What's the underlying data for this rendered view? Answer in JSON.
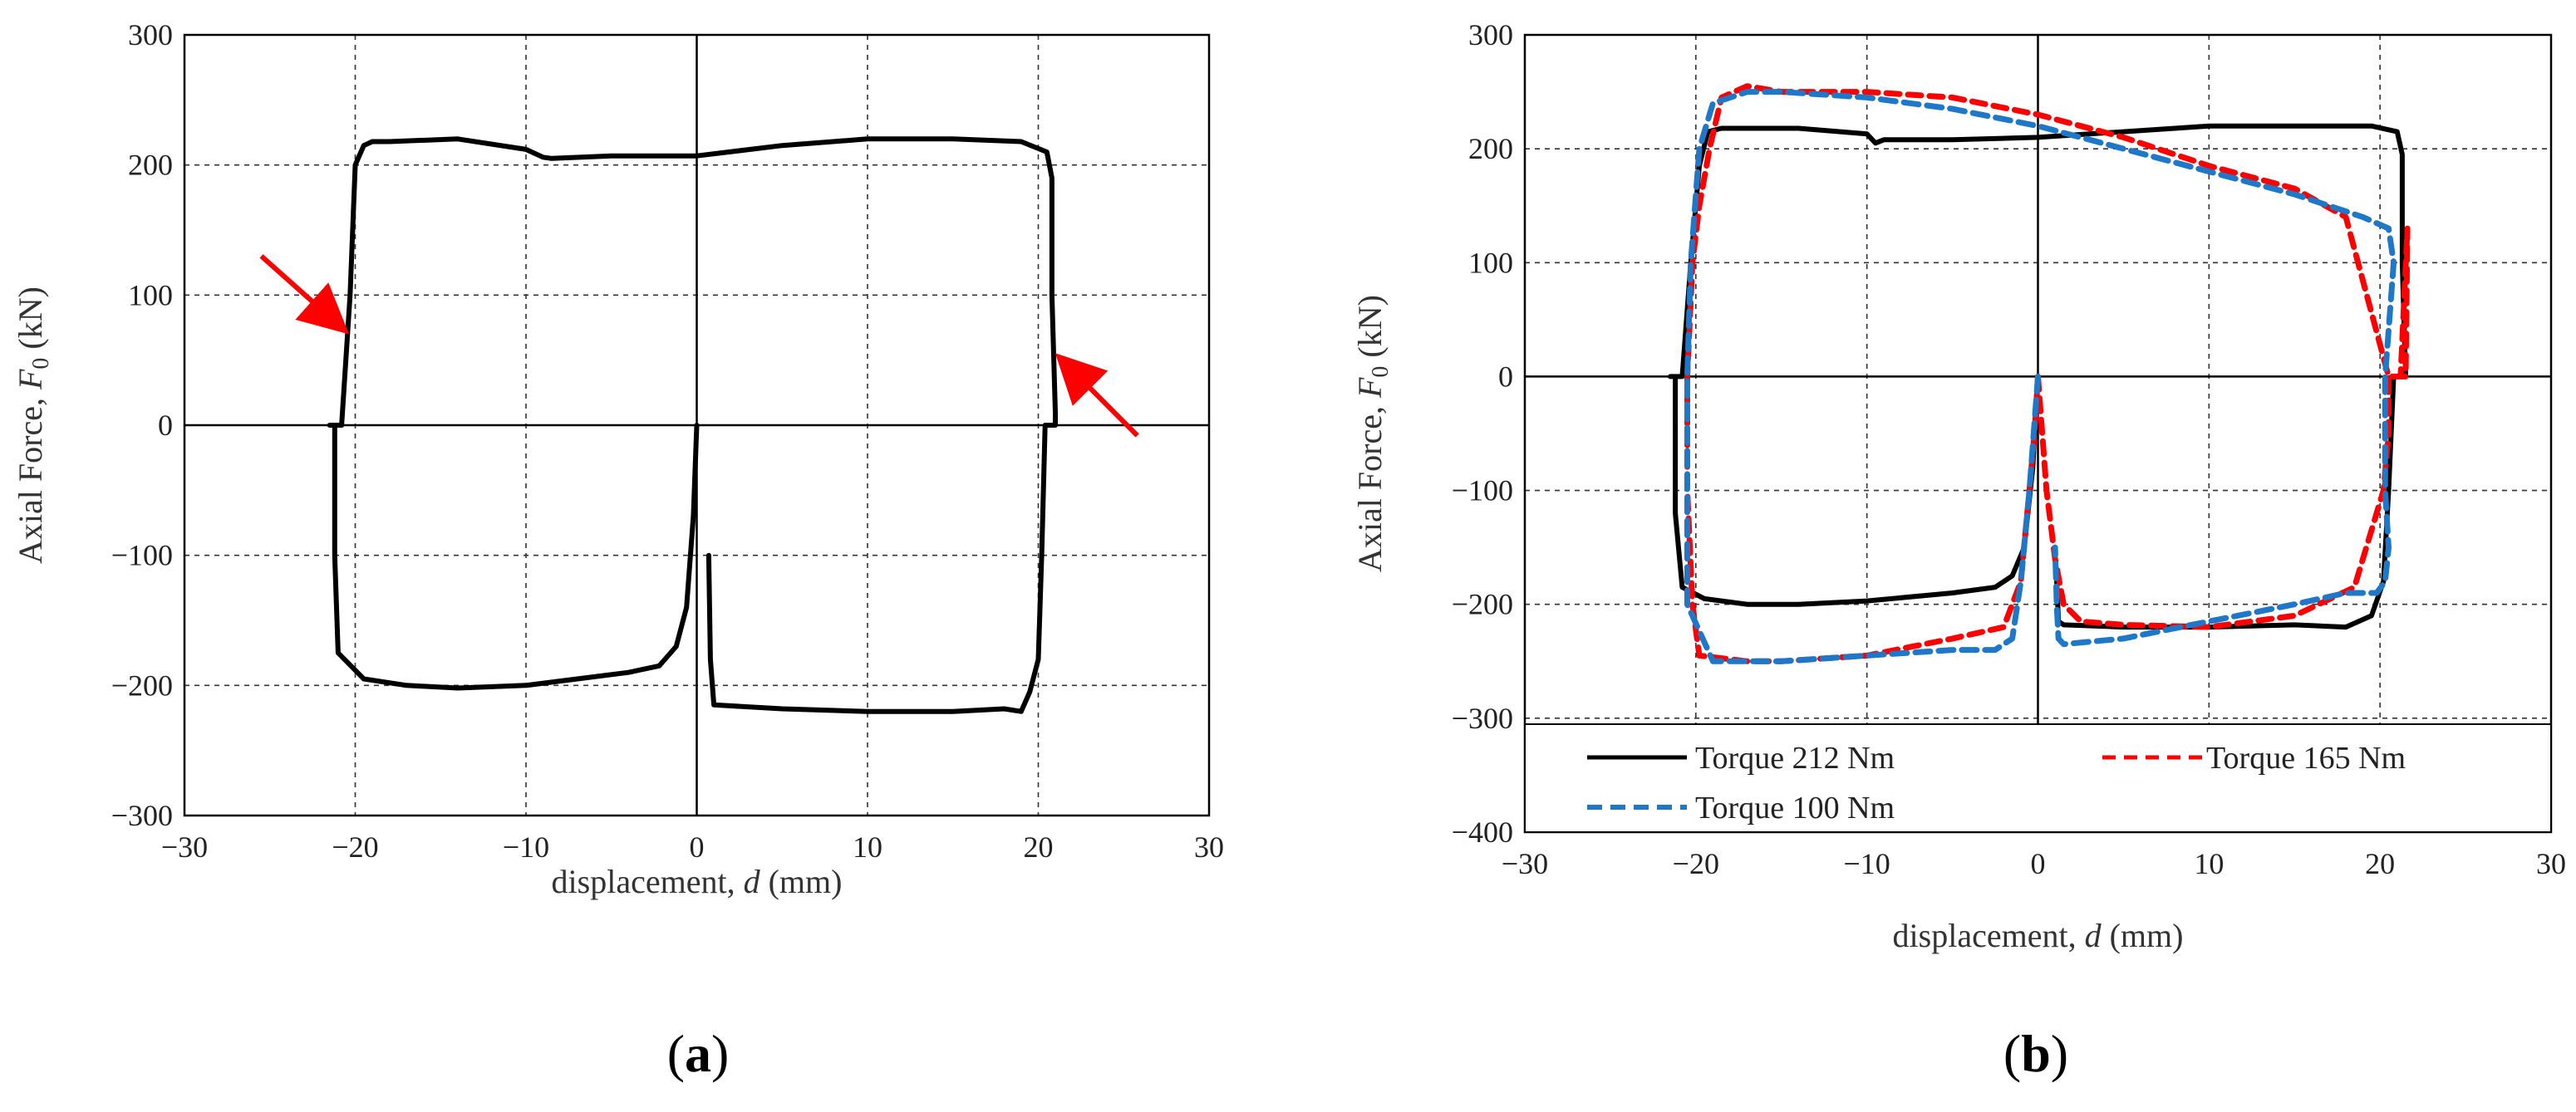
{
  "chart_data": [
    {
      "panel": "a",
      "type": "line",
      "panel_label_open": "(",
      "panel_label_letter": "a",
      "panel_label_close": ")",
      "xlabel_prefix": "displacement,  ",
      "xlabel_symbol": "d",
      "xlabel_suffix": " (mm)",
      "ylabel_prefix": "Axial Force, ",
      "ylabel_symbol": "F",
      "ylabel_subscript": "0",
      "ylabel_suffix": " (kN)",
      "xlim": [
        -30,
        30
      ],
      "ylim": [
        -300,
        300
      ],
      "xticks": [
        -30,
        -20,
        -10,
        0,
        10,
        20,
        30
      ],
      "yticks": [
        -300,
        -200,
        -100,
        0,
        100,
        200,
        300
      ],
      "xtick_labels": [
        "−30",
        "−20",
        "−10",
        "0",
        "10",
        "20",
        "30"
      ],
      "ytick_labels": [
        "−300",
        "−200",
        "−100",
        "0",
        "100",
        "200",
        "300"
      ],
      "grid": true,
      "annotations": [
        {
          "type": "arrow",
          "color": "#ff0000",
          "from": [
            -25.5,
            130
          ],
          "to": [
            -20.8,
            75
          ]
        },
        {
          "type": "arrow",
          "color": "#ff0000",
          "from": [
            25.8,
            -8
          ],
          "to": [
            21.4,
            50
          ]
        }
      ],
      "series": [
        {
          "name": "Torque 212 Nm",
          "color": "#000000",
          "dash": "solid",
          "x": [
            0,
            -0.2,
            -0.6,
            -1.2,
            -2.2,
            -4,
            -7,
            -10,
            -14,
            -17,
            -19.5,
            -21,
            -21.2,
            -21.2,
            -21.5,
            -20.8,
            -20.3,
            -20,
            -19.5,
            -19,
            -18,
            -14,
            -10,
            -9,
            -8.5,
            -5,
            0,
            5,
            10,
            15,
            19,
            20.5,
            20.8,
            20.8,
            21,
            21,
            20.4,
            20.2,
            20,
            19.5,
            19,
            18,
            15,
            10,
            5,
            1,
            0.8,
            0.7
          ],
          "y": [
            0,
            -70,
            -140,
            -170,
            -185,
            -190,
            -195,
            -200,
            -202,
            -200,
            -195,
            -175,
            -100,
            0,
            0,
            0,
            100,
            200,
            215,
            218,
            218,
            220,
            212,
            206,
            205,
            207,
            207,
            215,
            220,
            220,
            218,
            210,
            190,
            100,
            10,
            0,
            0,
            -100,
            -180,
            -205,
            -220,
            -218,
            -220,
            -220,
            -218,
            -215,
            -180,
            -100
          ]
        }
      ]
    },
    {
      "panel": "b",
      "type": "line",
      "panel_label_open": "(",
      "panel_label_letter": "b",
      "panel_label_close": ")",
      "xlabel_prefix": "displacement,  ",
      "xlabel_symbol": "d",
      "xlabel_suffix": " (mm)",
      "ylabel_prefix": "Axial Force, ",
      "ylabel_symbol": "F",
      "ylabel_subscript": "0",
      "ylabel_suffix": " (kN)",
      "xlim": [
        -30,
        30
      ],
      "ylim": [
        -400,
        300
      ],
      "xticks": [
        -30,
        -20,
        -10,
        0,
        10,
        20,
        30
      ],
      "yticks": [
        -400,
        -300,
        -200,
        -100,
        0,
        100,
        200,
        300
      ],
      "xtick_labels": [
        "−30",
        "−20",
        "−10",
        "0",
        "10",
        "20",
        "30"
      ],
      "ytick_labels": [
        "−400",
        "−300",
        "−200",
        "−100",
        "0",
        "100",
        "200",
        "300"
      ],
      "grid": true,
      "legend_position": "bottom",
      "series": [
        {
          "name": "Torque 212 Nm",
          "color": "#000000",
          "dash": "solid",
          "x": [
            0,
            -0.3,
            -0.8,
            -1.5,
            -2.5,
            -5,
            -10,
            -14,
            -17,
            -19.5,
            -20.8,
            -21.2,
            -21.2,
            -21.5,
            -20.8,
            -20.3,
            -19.8,
            -19.3,
            -18.5,
            -14,
            -10,
            -9.5,
            -9,
            -5,
            0,
            5,
            10,
            15,
            19.5,
            21,
            21.3,
            21.3,
            21.5,
            21.2,
            20.8,
            20.5,
            20.2,
            19.5,
            18,
            15,
            10,
            5,
            1.5,
            1.2,
            1.1
          ],
          "y": [
            0,
            -80,
            -150,
            -175,
            -185,
            -190,
            -197,
            -200,
            -200,
            -195,
            -185,
            -120,
            0,
            0,
            0,
            100,
            185,
            215,
            218,
            218,
            213,
            205,
            208,
            208,
            210,
            215,
            220,
            220,
            220,
            215,
            195,
            100,
            0,
            0,
            0,
            -100,
            -180,
            -210,
            -220,
            -218,
            -220,
            -220,
            -218,
            -215,
            -180
          ]
        },
        {
          "name": "Torque 165 Nm",
          "color": "#ff0000",
          "dash": "16 10",
          "x": [
            0,
            0.5,
            1.0,
            1.5,
            2.5,
            5,
            10,
            15,
            18.5,
            20.2,
            20.5,
            20.5,
            20.8,
            21.2,
            21.6,
            21.5,
            21.2,
            20.5,
            18,
            15,
            10,
            5,
            0,
            -5,
            -10,
            -15,
            -17,
            -18.5,
            -19.2,
            -19.8,
            -20.2,
            -20.5,
            -20.5,
            -20.2,
            -19.8,
            -17,
            -15,
            -10,
            -5,
            -2,
            -1,
            -0.5,
            -0.2,
            0
          ],
          "y": [
            0,
            -100,
            -160,
            -200,
            -215,
            -218,
            -220,
            -210,
            -185,
            -100,
            -50,
            0,
            0,
            0,
            130,
            0,
            0,
            0,
            140,
            165,
            185,
            210,
            230,
            245,
            250,
            250,
            255,
            245,
            200,
            150,
            100,
            0,
            -100,
            -200,
            -245,
            -250,
            -250,
            -245,
            -230,
            -220,
            -180,
            -100,
            -50,
            0
          ]
        },
        {
          "name": "Torque 100 Nm",
          "color": "#1f77c8",
          "dash": "18 10",
          "x": [
            0,
            -0.5,
            -1,
            -1.5,
            -2.5,
            -5,
            -10,
            -15,
            -19,
            -20.5,
            -20.5,
            -20.5,
            -20.3,
            -19.8,
            -19,
            -17,
            -15,
            -10,
            -5,
            0,
            5,
            10,
            15,
            19,
            20.5,
            20.8,
            20.3,
            20.3,
            20.5,
            20.3,
            19.8,
            18,
            15,
            10,
            5,
            1.5,
            1.2,
            1.1,
            1.0
          ],
          "y": [
            0,
            -100,
            -180,
            -230,
            -240,
            -240,
            -245,
            -250,
            -250,
            -200,
            -100,
            0,
            100,
            200,
            240,
            250,
            250,
            245,
            235,
            220,
            200,
            180,
            160,
            140,
            130,
            100,
            0,
            -100,
            -150,
            -180,
            -190,
            -190,
            -200,
            -215,
            -230,
            -235,
            -230,
            -200,
            -150
          ]
        }
      ]
    }
  ]
}
